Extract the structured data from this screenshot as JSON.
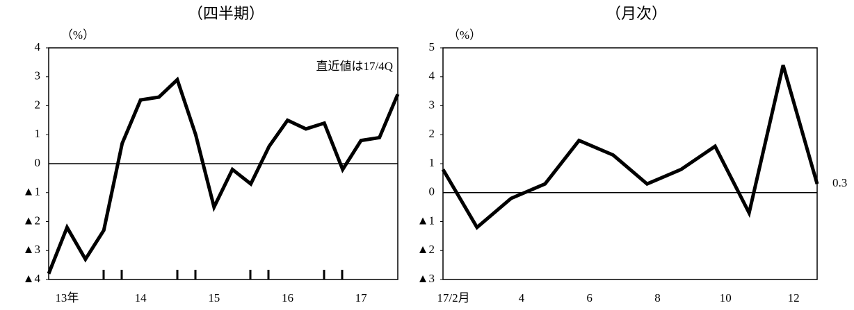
{
  "chart_data": [
    {
      "type": "line",
      "title": "（四半期）",
      "ylabel": "（%）",
      "annotation": "直近値は17/4Q",
      "categories": [
        null,
        "13年",
        null,
        null,
        null,
        "14",
        null,
        null,
        null,
        "15",
        null,
        null,
        null,
        "16",
        null,
        null,
        null,
        "17",
        null,
        null
      ],
      "series": [
        {
          "color": "#000000",
          "values": [
            -3.8,
            -2.2,
            -3.3,
            -2.3,
            0.7,
            2.2,
            2.3,
            2.9,
            1.0,
            -1.5,
            -0.2,
            -0.7,
            0.6,
            1.5,
            1.2,
            1.4,
            -0.2,
            0.8,
            0.9,
            2.4
          ]
        }
      ],
      "ylim": [
        -4,
        4
      ],
      "yticks": [
        4,
        3,
        2,
        1,
        0,
        {
          "value": -1,
          "label": "▲1"
        },
        {
          "value": -2,
          "label": "▲2"
        },
        {
          "value": -3,
          "label": "▲3"
        },
        {
          "value": -4,
          "label": "▲4"
        }
      ]
    },
    {
      "type": "line",
      "title": "（月次）",
      "ylabel": "（%）",
      "categories": [
        "17/2月",
        null,
        "4",
        null,
        "6",
        null,
        "8",
        null,
        "10",
        null,
        "12",
        null
      ],
      "series": [
        {
          "color": "#000000",
          "values": [
            0.8,
            -1.2,
            -0.2,
            0.3,
            1.8,
            1.3,
            0.3,
            0.8,
            1.6,
            -0.7,
            4.4,
            0.3
          ],
          "value_labels": [
            null,
            null,
            null,
            null,
            null,
            null,
            null,
            null,
            null,
            null,
            null,
            "0.3"
          ]
        }
      ],
      "ylim": [
        -3,
        5
      ],
      "yticks": [
        5,
        4,
        3,
        2,
        1,
        0,
        {
          "value": -1,
          "label": "▲1"
        },
        {
          "value": -2,
          "label": "▲2"
        },
        {
          "value": -3,
          "label": "▲3"
        }
      ]
    }
  ]
}
